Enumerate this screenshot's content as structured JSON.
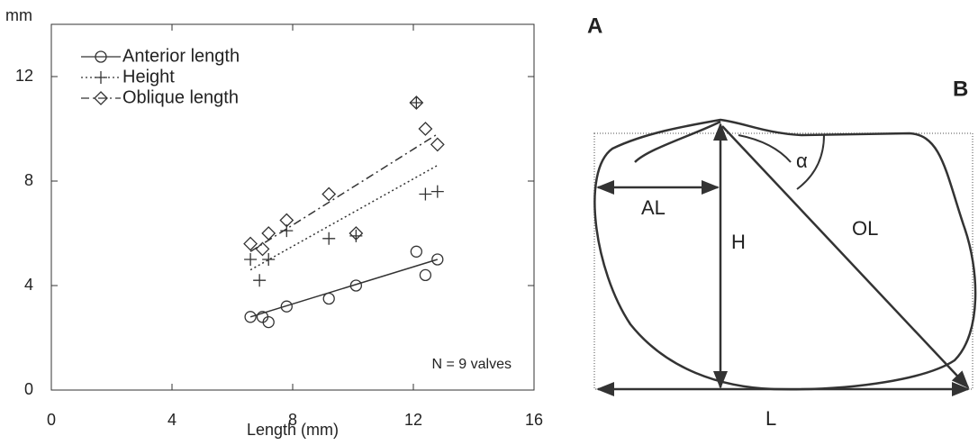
{
  "chart_data": {
    "type": "scatter",
    "y_axis_label": "mm",
    "x_axis_label": "Length (mm)",
    "annotation": "N = 9 valves",
    "xlim": [
      0,
      16
    ],
    "xticks": [
      0,
      4,
      8,
      12,
      16
    ],
    "ylim": [
      0,
      14
    ],
    "yticks": [
      0,
      4,
      8,
      12
    ],
    "legend": "upper left",
    "color": "#333333",
    "series": [
      {
        "name": "Anterior length",
        "marker": "circle",
        "linestyle": "solid",
        "x": [
          6.6,
          7.0,
          7.2,
          7.8,
          9.2,
          10.1,
          12.1,
          12.4,
          12.8
        ],
        "values": [
          2.8,
          2.8,
          2.6,
          3.2,
          3.5,
          4.0,
          5.3,
          4.4,
          5.0
        ],
        "fit": {
          "x": [
            6.6,
            12.8
          ],
          "values": [
            2.8,
            5.0
          ]
        }
      },
      {
        "name": "Height",
        "marker": "plus",
        "linestyle": "dotted",
        "x": [
          6.6,
          6.9,
          7.2,
          7.8,
          9.2,
          10.1,
          12.1,
          12.4,
          12.8
        ],
        "values": [
          5.0,
          4.2,
          5.0,
          6.1,
          5.8,
          5.9,
          11.0,
          7.5,
          7.6
        ],
        "fit": {
          "x": [
            6.6,
            12.8
          ],
          "values": [
            4.6,
            8.6
          ]
        }
      },
      {
        "name": "Oblique length",
        "marker": "diamond",
        "linestyle": "dashdot",
        "x": [
          6.6,
          7.0,
          7.2,
          7.8,
          9.2,
          10.1,
          12.1,
          12.4,
          12.8
        ],
        "values": [
          5.6,
          5.4,
          6.0,
          6.5,
          7.5,
          6.0,
          11.0,
          10.0,
          9.4
        ],
        "fit": {
          "x": [
            6.6,
            12.8
          ],
          "values": [
            5.3,
            9.8
          ]
        }
      }
    ]
  },
  "panel_labels": [
    "A",
    "B"
  ],
  "diagram": {
    "labels": {
      "AL": "AL",
      "H": "H",
      "OL": "OL",
      "alpha": "α",
      "L": "L"
    }
  }
}
